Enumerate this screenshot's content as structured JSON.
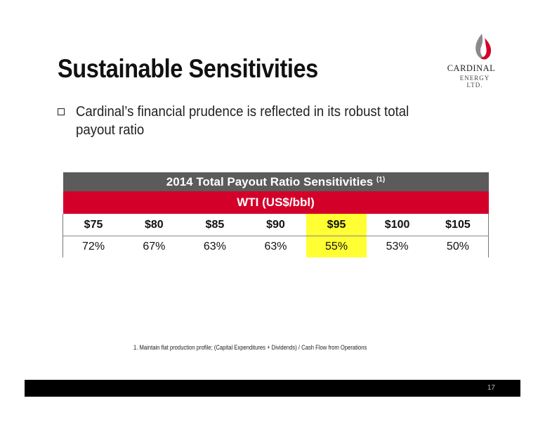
{
  "slide": {
    "title": "Sustainable Sensitivities",
    "bullet": "Cardinal’s financial prudence is reflected in its robust total payout ratio",
    "page_number": "17"
  },
  "logo": {
    "name": "CARDINAL",
    "sub": "ENERGY LTD."
  },
  "table": {
    "title": "2014 Total Payout Ratio Sensitivities",
    "title_note": "(1)",
    "subheader": "WTI (US$/bbl)",
    "prices": [
      "$75",
      "$80",
      "$85",
      "$90",
      "$95",
      "$100",
      "$105"
    ],
    "ratios": [
      "72%",
      "67%",
      "63%",
      "63%",
      "55%",
      "53%",
      "50%"
    ],
    "highlight_color": "#ffff33",
    "header_color": "#5b5b5b",
    "subheader_color": "#d3012a"
  },
  "footnote": "1.  Maintain flat production profile; (Capital Expenditures + Dividends) / Cash Flow from Operations"
}
